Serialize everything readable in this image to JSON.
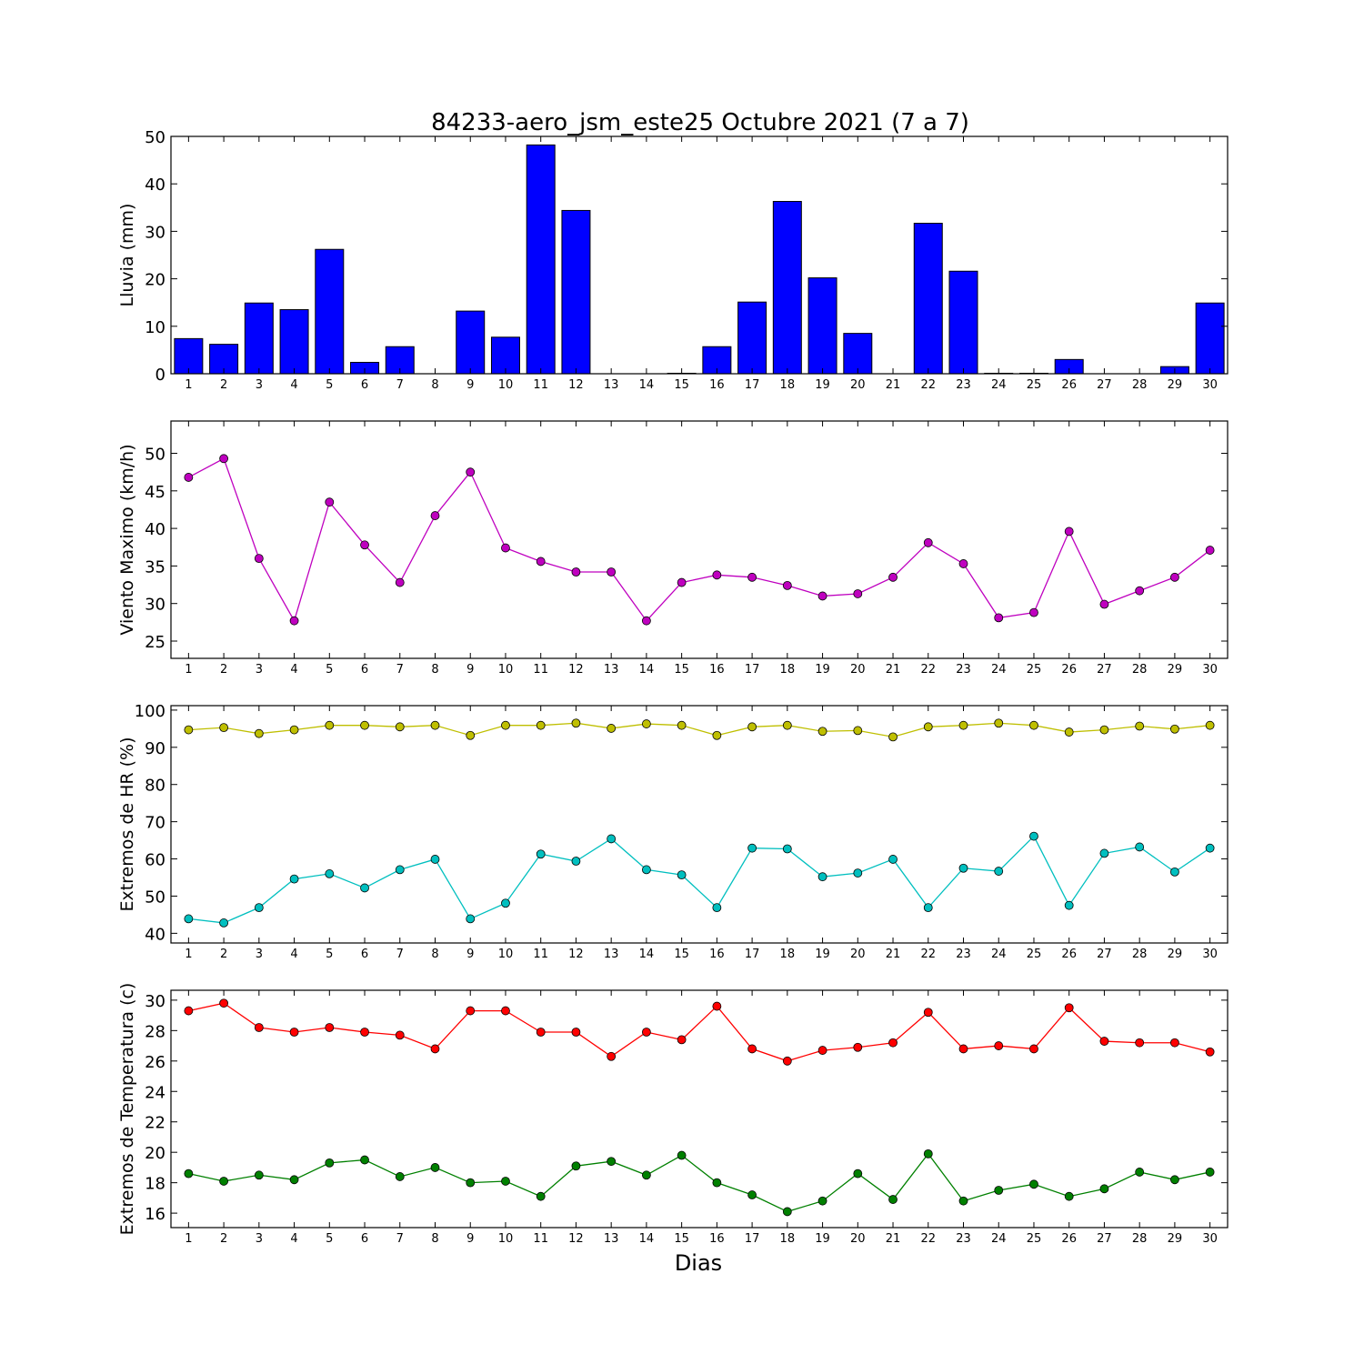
{
  "chart_data": [
    {
      "type": "bar",
      "title": "84233-aero_jsm_este25 Octubre 2021  (7 a 7)",
      "ylabel": "Lluvia (mm)",
      "ylim": [
        0,
        50
      ],
      "yticks": [
        0,
        10,
        20,
        30,
        40,
        50
      ],
      "categories": [
        "1",
        "2",
        "3",
        "4",
        "5",
        "6",
        "7",
        "8",
        "9",
        "10",
        "11",
        "12",
        "13",
        "14",
        "15",
        "16",
        "17",
        "18",
        "19",
        "20",
        "21",
        "22",
        "23",
        "24",
        "25",
        "26",
        "27",
        "28",
        "29",
        "30"
      ],
      "series": [
        {
          "color": "#0000ff",
          "values": [
            7.4,
            6.2,
            14.9,
            13.5,
            26.2,
            2.4,
            5.7,
            0,
            13.2,
            7.7,
            48.2,
            34.4,
            0,
            0,
            0.1,
            5.7,
            15.1,
            36.3,
            20.2,
            8.5,
            0,
            31.7,
            21.6,
            0.1,
            0.1,
            3.0,
            0,
            0,
            1.5,
            14.9
          ]
        }
      ]
    },
    {
      "type": "line",
      "ylabel": "Viento Maximo (km/h)",
      "ylim": [
        22.7,
        54.3
      ],
      "yticks": [
        25,
        30,
        35,
        40,
        45,
        50
      ],
      "categories": [
        "1",
        "2",
        "3",
        "4",
        "5",
        "6",
        "7",
        "8",
        "9",
        "10",
        "11",
        "12",
        "13",
        "14",
        "15",
        "16",
        "17",
        "18",
        "19",
        "20",
        "21",
        "22",
        "23",
        "24",
        "25",
        "26",
        "27",
        "28",
        "29",
        "30"
      ],
      "series": [
        {
          "color": "#bf00bf",
          "values": [
            46.8,
            49.3,
            36.0,
            27.7,
            43.5,
            37.8,
            32.8,
            41.7,
            47.5,
            37.4,
            35.6,
            34.2,
            34.2,
            27.7,
            32.8,
            33.8,
            33.5,
            32.4,
            31.0,
            31.3,
            33.5,
            38.1,
            35.3,
            28.1,
            28.8,
            39.6,
            29.9,
            31.7,
            33.5,
            37.1
          ]
        }
      ]
    },
    {
      "type": "line",
      "ylabel": "Extremos de HR (%)",
      "ylim": [
        37.4,
        101.2
      ],
      "yticks": [
        40,
        50,
        60,
        70,
        80,
        90,
        100
      ],
      "categories": [
        "1",
        "2",
        "3",
        "4",
        "5",
        "6",
        "7",
        "8",
        "9",
        "10",
        "11",
        "12",
        "13",
        "14",
        "15",
        "16",
        "17",
        "18",
        "19",
        "20",
        "21",
        "22",
        "23",
        "24",
        "25",
        "26",
        "27",
        "28",
        "29",
        "30"
      ],
      "series": [
        {
          "color": "#bfbf00",
          "values": [
            94.7,
            95.3,
            93.7,
            94.7,
            95.9,
            95.9,
            95.5,
            95.9,
            93.2,
            95.9,
            95.9,
            96.5,
            95.1,
            96.3,
            95.9,
            93.2,
            95.5,
            95.9,
            94.3,
            94.5,
            92.8,
            95.5,
            95.9,
            96.5,
            95.9,
            94.1,
            94.7,
            95.7,
            94.9,
            95.9
          ]
        },
        {
          "color": "#00bfbf",
          "values": [
            43.9,
            42.8,
            46.9,
            54.6,
            56.0,
            52.2,
            57.1,
            59.9,
            43.9,
            48.1,
            61.3,
            59.4,
            65.4,
            57.1,
            55.7,
            46.9,
            62.9,
            62.7,
            55.2,
            56.2,
            59.9,
            46.9,
            57.5,
            56.7,
            66.1,
            47.5,
            61.5,
            63.2,
            56.5,
            62.9
          ]
        }
      ]
    },
    {
      "type": "line",
      "ylabel": "Extremos de Temperatura (c)",
      "xlabel": "Dias",
      "ylim": [
        15.05,
        30.65
      ],
      "yticks": [
        16,
        18,
        20,
        22,
        24,
        26,
        28,
        30
      ],
      "categories": [
        "1",
        "2",
        "3",
        "4",
        "5",
        "6",
        "7",
        "8",
        "9",
        "10",
        "11",
        "12",
        "13",
        "14",
        "15",
        "16",
        "17",
        "18",
        "19",
        "20",
        "21",
        "22",
        "23",
        "24",
        "25",
        "26",
        "27",
        "28",
        "29",
        "30"
      ],
      "series": [
        {
          "color": "#ff0000",
          "values": [
            29.3,
            29.8,
            28.2,
            27.9,
            28.2,
            27.9,
            27.7,
            26.8,
            29.3,
            29.3,
            27.9,
            27.9,
            26.3,
            27.9,
            27.4,
            29.6,
            26.8,
            26.0,
            26.7,
            26.9,
            27.2,
            29.2,
            26.8,
            27.0,
            26.8,
            29.5,
            27.3,
            27.2,
            27.2,
            26.6
          ]
        },
        {
          "color": "#008000",
          "values": [
            18.6,
            18.1,
            18.5,
            18.2,
            19.3,
            19.5,
            18.4,
            19.0,
            18.0,
            18.1,
            17.1,
            19.1,
            19.4,
            18.5,
            19.8,
            18.0,
            17.2,
            16.1,
            16.8,
            18.6,
            16.9,
            19.9,
            16.8,
            17.5,
            17.9,
            17.1,
            17.6,
            18.7,
            18.2,
            18.7
          ]
        }
      ]
    }
  ]
}
